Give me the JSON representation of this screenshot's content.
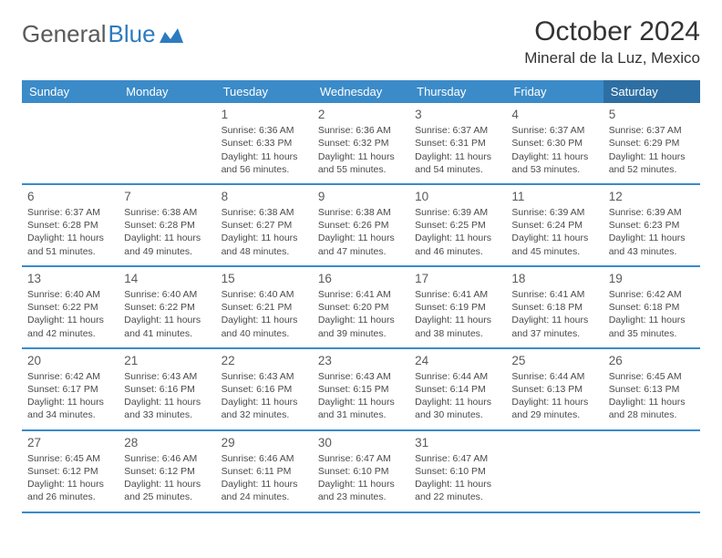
{
  "brand": {
    "part1": "General",
    "part2": "Blue"
  },
  "title": "October 2024",
  "location": "Mineral de la Luz, Mexico",
  "colors": {
    "header_bg": "#3b8bc9",
    "header_bg_sat": "#2d6fa3",
    "header_text": "#ffffff",
    "row_border": "#3b8bc9",
    "text": "#333333",
    "cell_text": "#4a4a4a"
  },
  "days_of_week": [
    "Sunday",
    "Monday",
    "Tuesday",
    "Wednesday",
    "Thursday",
    "Friday",
    "Saturday"
  ],
  "weeks": [
    [
      null,
      null,
      {
        "n": "1",
        "sunrise": "6:36 AM",
        "sunset": "6:33 PM",
        "daylight": "11 hours and 56 minutes."
      },
      {
        "n": "2",
        "sunrise": "6:36 AM",
        "sunset": "6:32 PM",
        "daylight": "11 hours and 55 minutes."
      },
      {
        "n": "3",
        "sunrise": "6:37 AM",
        "sunset": "6:31 PM",
        "daylight": "11 hours and 54 minutes."
      },
      {
        "n": "4",
        "sunrise": "6:37 AM",
        "sunset": "6:30 PM",
        "daylight": "11 hours and 53 minutes."
      },
      {
        "n": "5",
        "sunrise": "6:37 AM",
        "sunset": "6:29 PM",
        "daylight": "11 hours and 52 minutes."
      }
    ],
    [
      {
        "n": "6",
        "sunrise": "6:37 AM",
        "sunset": "6:28 PM",
        "daylight": "11 hours and 51 minutes."
      },
      {
        "n": "7",
        "sunrise": "6:38 AM",
        "sunset": "6:28 PM",
        "daylight": "11 hours and 49 minutes."
      },
      {
        "n": "8",
        "sunrise": "6:38 AM",
        "sunset": "6:27 PM",
        "daylight": "11 hours and 48 minutes."
      },
      {
        "n": "9",
        "sunrise": "6:38 AM",
        "sunset": "6:26 PM",
        "daylight": "11 hours and 47 minutes."
      },
      {
        "n": "10",
        "sunrise": "6:39 AM",
        "sunset": "6:25 PM",
        "daylight": "11 hours and 46 minutes."
      },
      {
        "n": "11",
        "sunrise": "6:39 AM",
        "sunset": "6:24 PM",
        "daylight": "11 hours and 45 minutes."
      },
      {
        "n": "12",
        "sunrise": "6:39 AM",
        "sunset": "6:23 PM",
        "daylight": "11 hours and 43 minutes."
      }
    ],
    [
      {
        "n": "13",
        "sunrise": "6:40 AM",
        "sunset": "6:22 PM",
        "daylight": "11 hours and 42 minutes."
      },
      {
        "n": "14",
        "sunrise": "6:40 AM",
        "sunset": "6:22 PM",
        "daylight": "11 hours and 41 minutes."
      },
      {
        "n": "15",
        "sunrise": "6:40 AM",
        "sunset": "6:21 PM",
        "daylight": "11 hours and 40 minutes."
      },
      {
        "n": "16",
        "sunrise": "6:41 AM",
        "sunset": "6:20 PM",
        "daylight": "11 hours and 39 minutes."
      },
      {
        "n": "17",
        "sunrise": "6:41 AM",
        "sunset": "6:19 PM",
        "daylight": "11 hours and 38 minutes."
      },
      {
        "n": "18",
        "sunrise": "6:41 AM",
        "sunset": "6:18 PM",
        "daylight": "11 hours and 37 minutes."
      },
      {
        "n": "19",
        "sunrise": "6:42 AM",
        "sunset": "6:18 PM",
        "daylight": "11 hours and 35 minutes."
      }
    ],
    [
      {
        "n": "20",
        "sunrise": "6:42 AM",
        "sunset": "6:17 PM",
        "daylight": "11 hours and 34 minutes."
      },
      {
        "n": "21",
        "sunrise": "6:43 AM",
        "sunset": "6:16 PM",
        "daylight": "11 hours and 33 minutes."
      },
      {
        "n": "22",
        "sunrise": "6:43 AM",
        "sunset": "6:16 PM",
        "daylight": "11 hours and 32 minutes."
      },
      {
        "n": "23",
        "sunrise": "6:43 AM",
        "sunset": "6:15 PM",
        "daylight": "11 hours and 31 minutes."
      },
      {
        "n": "24",
        "sunrise": "6:44 AM",
        "sunset": "6:14 PM",
        "daylight": "11 hours and 30 minutes."
      },
      {
        "n": "25",
        "sunrise": "6:44 AM",
        "sunset": "6:13 PM",
        "daylight": "11 hours and 29 minutes."
      },
      {
        "n": "26",
        "sunrise": "6:45 AM",
        "sunset": "6:13 PM",
        "daylight": "11 hours and 28 minutes."
      }
    ],
    [
      {
        "n": "27",
        "sunrise": "6:45 AM",
        "sunset": "6:12 PM",
        "daylight": "11 hours and 26 minutes."
      },
      {
        "n": "28",
        "sunrise": "6:46 AM",
        "sunset": "6:12 PM",
        "daylight": "11 hours and 25 minutes."
      },
      {
        "n": "29",
        "sunrise": "6:46 AM",
        "sunset": "6:11 PM",
        "daylight": "11 hours and 24 minutes."
      },
      {
        "n": "30",
        "sunrise": "6:47 AM",
        "sunset": "6:10 PM",
        "daylight": "11 hours and 23 minutes."
      },
      {
        "n": "31",
        "sunrise": "6:47 AM",
        "sunset": "6:10 PM",
        "daylight": "11 hours and 22 minutes."
      },
      null,
      null
    ]
  ],
  "labels": {
    "sunrise": "Sunrise:",
    "sunset": "Sunset:",
    "daylight": "Daylight:"
  }
}
